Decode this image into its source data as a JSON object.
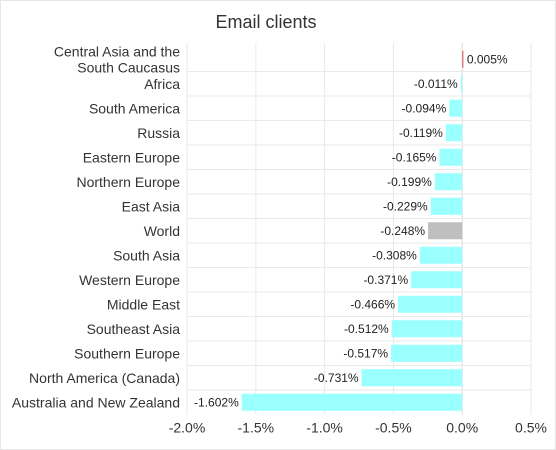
{
  "chart_data": {
    "type": "bar",
    "orientation": "horizontal",
    "title": "Email clients",
    "categories": [
      "Central Asia and the South Caucasus",
      "Africa",
      "South America",
      "Russia",
      "Eastern Europe",
      "Northern Europe",
      "East Asia",
      "World",
      "South Asia",
      "Western Europe",
      "Middle East",
      "Southeast Asia",
      "Southern Europe",
      "North America (Canada)",
      "Australia and New Zealand"
    ],
    "values": [
      0.005,
      -0.011,
      -0.094,
      -0.119,
      -0.165,
      -0.199,
      -0.229,
      -0.248,
      -0.308,
      -0.371,
      -0.466,
      -0.512,
      -0.517,
      -0.731,
      -1.602
    ],
    "data_labels": [
      "0.005%",
      "-0.011%",
      "-0.094%",
      "-0.119%",
      "-0.165%",
      "-0.199%",
      "-0.229%",
      "-0.248%",
      "-0.308%",
      "-0.371%",
      "-0.466%",
      "-0.512%",
      "-0.517%",
      "-0.731%",
      "-1.602%"
    ],
    "xlim": [
      -2.0,
      0.5
    ],
    "xticks": [
      -2.0,
      -1.5,
      -1.0,
      -0.5,
      0.0,
      0.5
    ],
    "xtick_labels": [
      "-2.0%",
      "-1.5%",
      "-1.0%",
      "-0.5%",
      "0.0%",
      "0.5%"
    ],
    "grid": true,
    "legend": false,
    "colors": {
      "negative": "#99ffff",
      "positive": "#e06666",
      "highlight": "#bfbfbf"
    },
    "highlight_category": "World"
  }
}
